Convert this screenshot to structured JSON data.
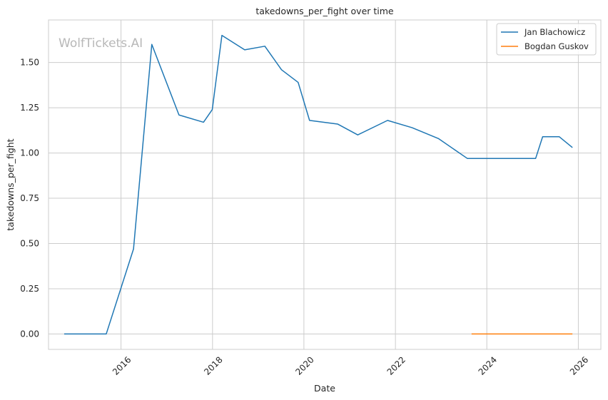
{
  "chart_data": {
    "type": "line",
    "title": "takedowns_per_fight over time",
    "xlabel": "Date",
    "ylabel": "takedowns_per_fight",
    "watermark": "WolfTickets.AI",
    "x_ticks": [
      "2016",
      "2018",
      "2020",
      "2022",
      "2024",
      "2026"
    ],
    "x_tick_dates": [
      "2016-01-01",
      "2018-01-01",
      "2020-01-01",
      "2022-01-01",
      "2024-01-01",
      "2026-01-01"
    ],
    "xlim": [
      "2014-06-01",
      "2026-06-30"
    ],
    "y_ticks": [
      "0.00",
      "0.25",
      "0.50",
      "0.75",
      "1.00",
      "1.25",
      "1.50"
    ],
    "y_tick_values": [
      0,
      0.25,
      0.5,
      0.75,
      1.0,
      1.25,
      1.5
    ],
    "ylim": [
      -0.085,
      1.735
    ],
    "grid": true,
    "legend_position": "top-right",
    "series": [
      {
        "name": "Jan Blachowicz",
        "color": "#1f77b4",
        "x": [
          "2014-10-04",
          "2015-09-05",
          "2016-04-10",
          "2016-09-03",
          "2017-04-08",
          "2017-10-21",
          "2017-12-30",
          "2018-03-17",
          "2018-09-15",
          "2019-02-23",
          "2019-07-06",
          "2019-11-16",
          "2020-02-15",
          "2020-09-26",
          "2021-03-06",
          "2021-10-30",
          "2022-05-14",
          "2022-12-10",
          "2023-07-29",
          "2025-01-25",
          "2025-03-22",
          "2025-08-01",
          "2025-11-15"
        ],
        "y": [
          0.0,
          0.0,
          0.47,
          1.6,
          1.21,
          1.17,
          1.24,
          1.65,
          1.57,
          1.59,
          1.46,
          1.39,
          1.18,
          1.16,
          1.1,
          1.18,
          1.14,
          1.08,
          0.97,
          0.97,
          1.09,
          1.09,
          1.03
        ]
      },
      {
        "name": "Bogdan Guskov",
        "color": "#ff7f0e",
        "x": [
          "2023-09-01",
          "2025-11-15"
        ],
        "y": [
          0.0,
          0.0
        ]
      }
    ]
  }
}
